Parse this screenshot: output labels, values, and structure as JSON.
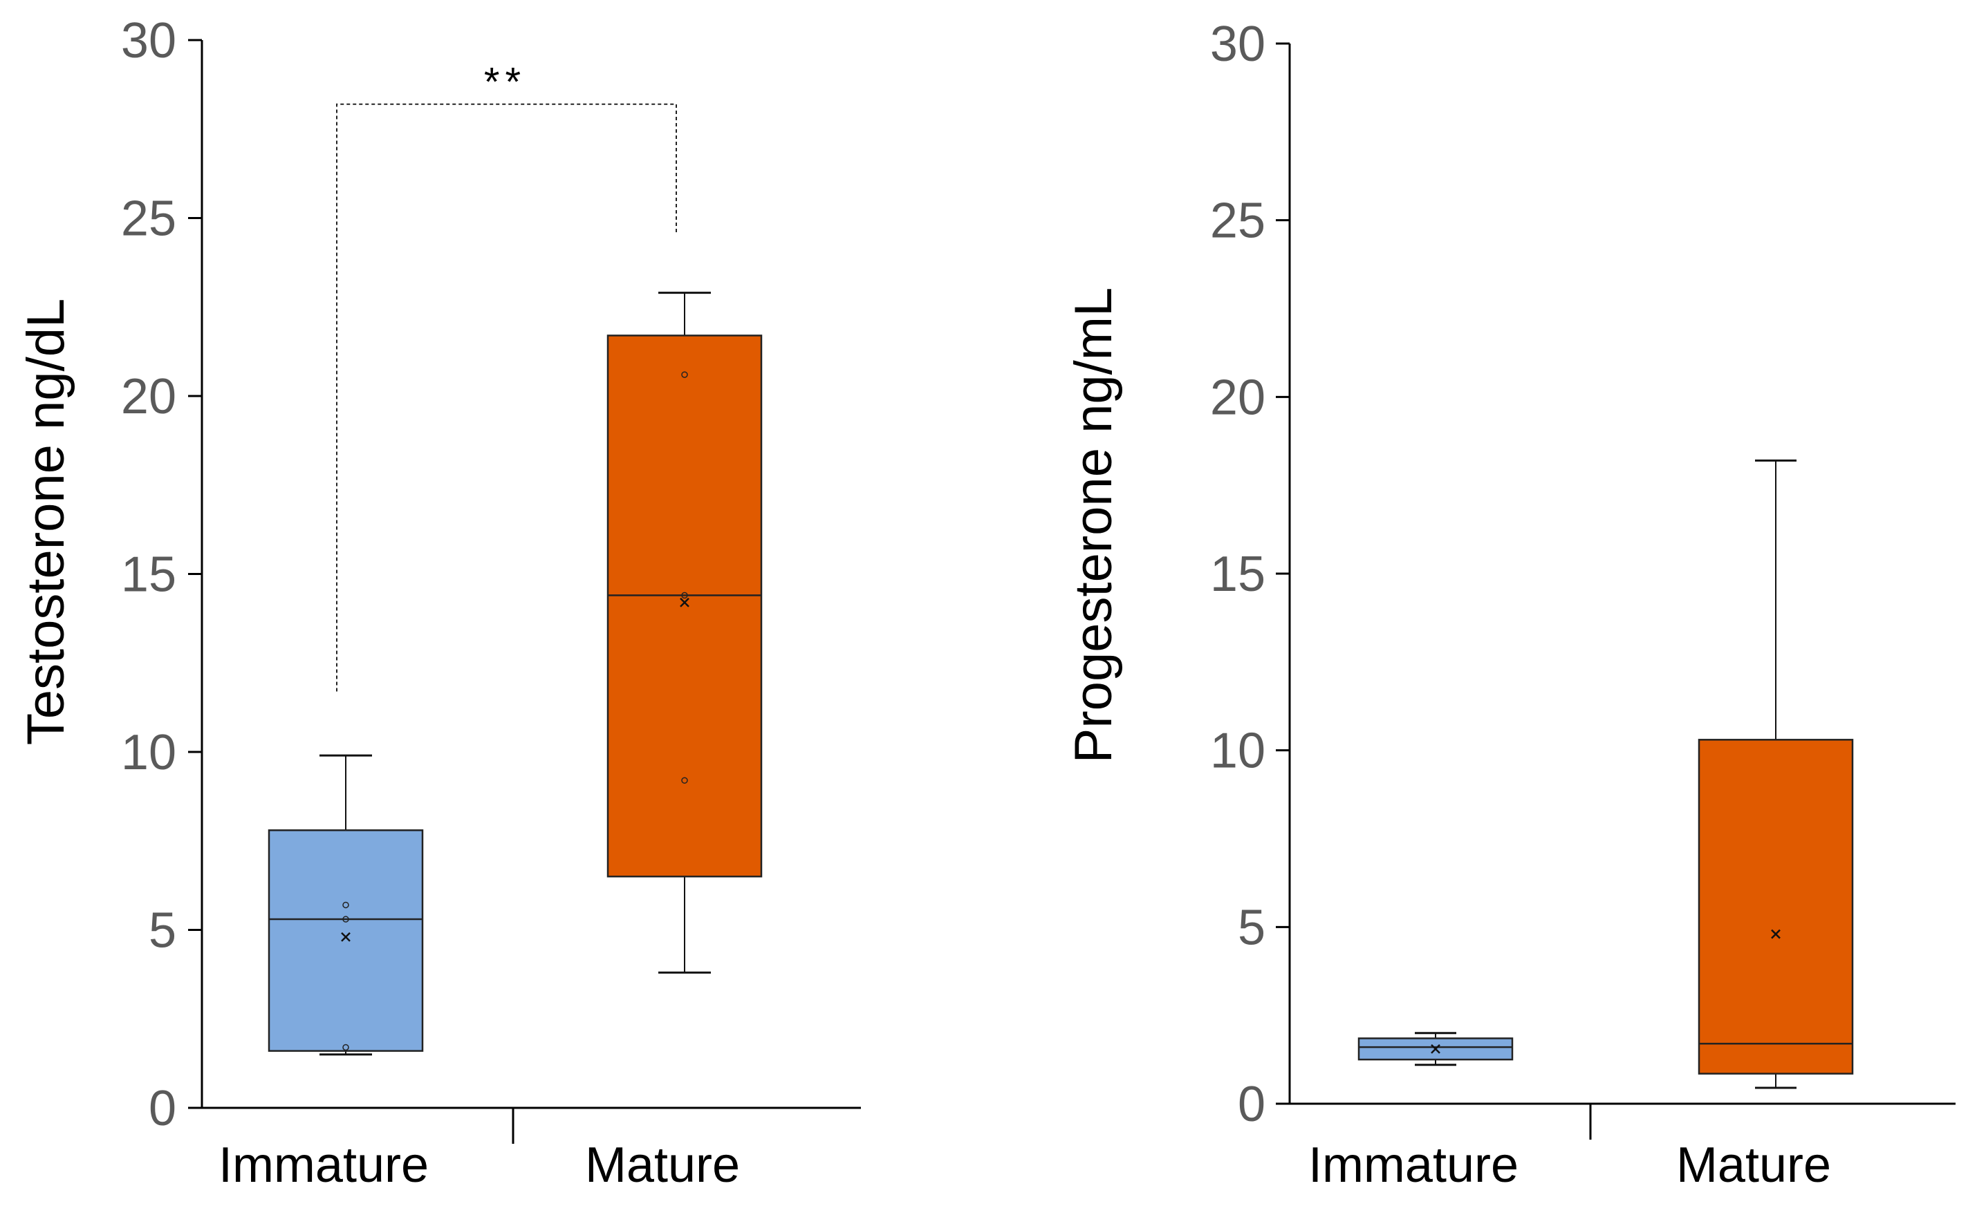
{
  "chart_data": [
    {
      "type": "box",
      "ylabel": "Testosterone ng/dL",
      "ylim": [
        0,
        30
      ],
      "yticks": [
        0,
        5,
        10,
        15,
        20,
        25,
        30
      ],
      "categories": [
        "Immature",
        "Mature"
      ],
      "boxes": [
        {
          "category": "Immature",
          "color": "#7faade",
          "min": 1.5,
          "q1": 1.6,
          "median": 5.3,
          "q3": 7.8,
          "max": 9.9,
          "mean": 4.8,
          "points": [
            1.7,
            5.3,
            5.7
          ]
        },
        {
          "category": "Mature",
          "color": "#e05a00",
          "min": 3.8,
          "q1": 6.5,
          "median": 14.4,
          "q3": 21.7,
          "max": 22.9,
          "mean": 14.2,
          "points": [
            9.2,
            14.4,
            20.6
          ]
        }
      ],
      "significance": {
        "label": "**",
        "from": "Immature",
        "to": "Mature",
        "bracket_y": 28.2,
        "left_drop_to": 11.7,
        "right_drop_to": 24.6
      }
    },
    {
      "type": "box",
      "ylabel": "Progesterone ng/mL",
      "ylim": [
        0,
        30
      ],
      "yticks": [
        0,
        5,
        10,
        15,
        20,
        25,
        30
      ],
      "categories": [
        "Immature",
        "Mature"
      ],
      "boxes": [
        {
          "category": "Immature",
          "color": "#7faade",
          "min": 1.1,
          "q1": 1.25,
          "median": 1.6,
          "q3": 1.85,
          "max": 2.0,
          "mean": 1.55,
          "points": []
        },
        {
          "category": "Mature",
          "color": "#e05a00",
          "min": 0.45,
          "q1": 0.85,
          "median": 1.7,
          "q3": 10.3,
          "max": 18.2,
          "mean": 4.8,
          "points": []
        }
      ]
    }
  ]
}
